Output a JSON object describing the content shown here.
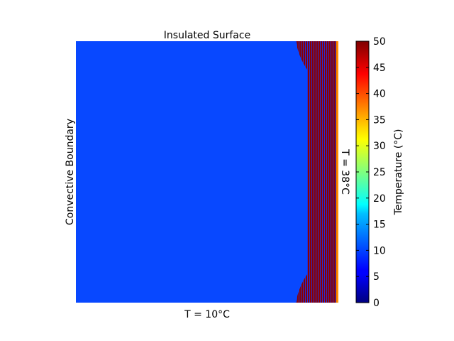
{
  "chart_data": {
    "type": "heatmap",
    "title": "",
    "boundary_labels": {
      "top": "Insulated Surface",
      "bottom": "T = 10°C",
      "left": "Convective Boundary",
      "right": "T = 38°C"
    },
    "field": {
      "description_values": {
        "bulk_temperature": 10,
        "right_band_temperature_range": [
          0,
          50
        ],
        "right_edge_temperature": 38
      }
    },
    "colorbar": {
      "label": "Temperature (°C)",
      "range": [
        0,
        50
      ],
      "ticks": [
        "0",
        "5",
        "10",
        "15",
        "20",
        "25",
        "30",
        "35",
        "40",
        "45",
        "50"
      ],
      "colormap": "jet"
    },
    "colors": {
      "bulk": "#0848ff",
      "band_dark": "#800000",
      "band_blue": "#1e3cff",
      "edge": "#ff8c00"
    }
  }
}
